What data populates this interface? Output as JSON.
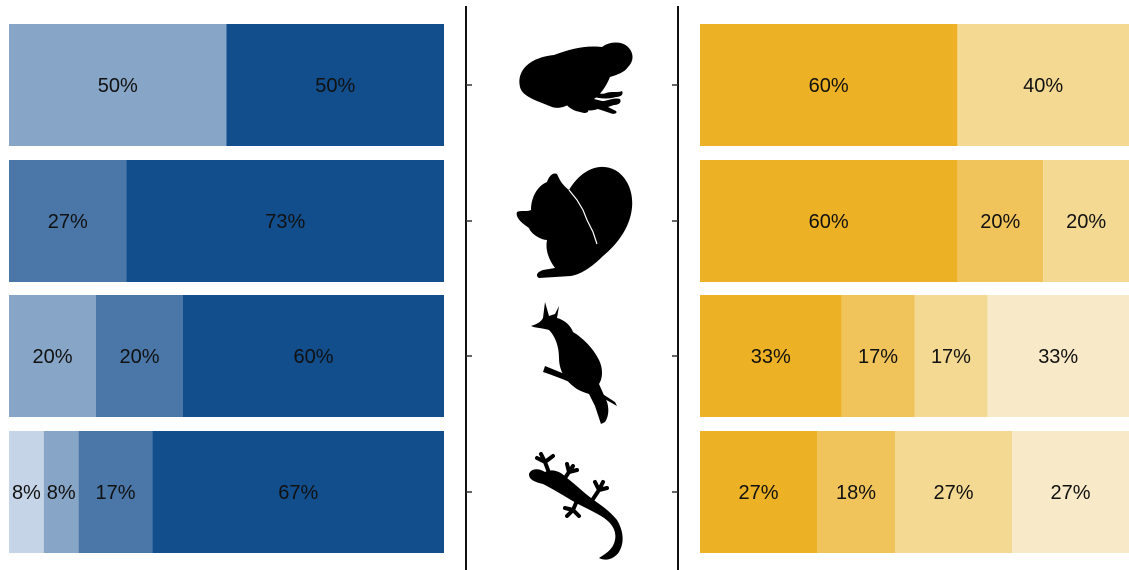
{
  "chart_data": [
    {
      "type": "bar",
      "orientation": "horizontal",
      "stacked": "percent",
      "categories": [
        "frog",
        "squirrel",
        "bird",
        "gecko"
      ],
      "colors": [
        "#c5d4e6",
        "#87a5c6",
        "#4a76a8",
        "#124d8c"
      ],
      "rows": [
        {
          "segments": [
            {
              "value": 50,
              "label": "50%",
              "color": "#87a5c6"
            },
            {
              "value": 50,
              "label": "50%",
              "color": "#124d8c"
            }
          ]
        },
        {
          "segments": [
            {
              "value": 27,
              "label": "27%",
              "color": "#4a76a8"
            },
            {
              "value": 73,
              "label": "73%",
              "color": "#124d8c"
            }
          ]
        },
        {
          "segments": [
            {
              "value": 20,
              "label": "20%",
              "color": "#87a5c6"
            },
            {
              "value": 20,
              "label": "20%",
              "color": "#4a76a8"
            },
            {
              "value": 60,
              "label": "60%",
              "color": "#124d8c"
            }
          ]
        },
        {
          "segments": [
            {
              "value": 8,
              "label": "8%",
              "color": "#c5d4e6"
            },
            {
              "value": 8,
              "label": "8%",
              "color": "#87a5c6"
            },
            {
              "value": 17,
              "label": "17%",
              "color": "#4a76a8"
            },
            {
              "value": 67,
              "label": "67%",
              "color": "#124d8c"
            }
          ]
        }
      ],
      "xlim": [
        0,
        100
      ],
      "grid": false,
      "legend": "none"
    },
    {
      "type": "bar",
      "orientation": "horizontal",
      "stacked": "percent",
      "categories": [
        "frog",
        "squirrel",
        "bird",
        "gecko"
      ],
      "colors": [
        "#ecb125",
        "#f1c45b",
        "#f4d993",
        "#f8eac8"
      ],
      "rows": [
        {
          "segments": [
            {
              "value": 60,
              "label": "60%",
              "color": "#ecb125"
            },
            {
              "value": 40,
              "label": "40%",
              "color": "#f4d993"
            }
          ]
        },
        {
          "segments": [
            {
              "value": 60,
              "label": "60%",
              "color": "#ecb125"
            },
            {
              "value": 20,
              "label": "20%",
              "color": "#f1c45b"
            },
            {
              "value": 20,
              "label": "20%",
              "color": "#f4d993"
            }
          ]
        },
        {
          "segments": [
            {
              "value": 33,
              "label": "33%",
              "color": "#ecb125"
            },
            {
              "value": 17,
              "label": "17%",
              "color": "#f1c45b"
            },
            {
              "value": 17,
              "label": "17%",
              "color": "#f4d993"
            },
            {
              "value": 33,
              "label": "33%",
              "color": "#f8eac8"
            }
          ]
        },
        {
          "segments": [
            {
              "value": 27,
              "label": "27%",
              "color": "#ecb125"
            },
            {
              "value": 18,
              "label": "18%",
              "color": "#f1c45b"
            },
            {
              "value": 27,
              "label": "27%",
              "color": "#f4d993"
            },
            {
              "value": 27,
              "label": "27%",
              "color": "#f8eac8"
            }
          ]
        }
      ],
      "xlim": [
        0,
        100
      ],
      "grid": false,
      "legend": "none"
    }
  ],
  "icons": [
    "frog-icon",
    "squirrel-icon",
    "bird-icon",
    "gecko-icon"
  ]
}
